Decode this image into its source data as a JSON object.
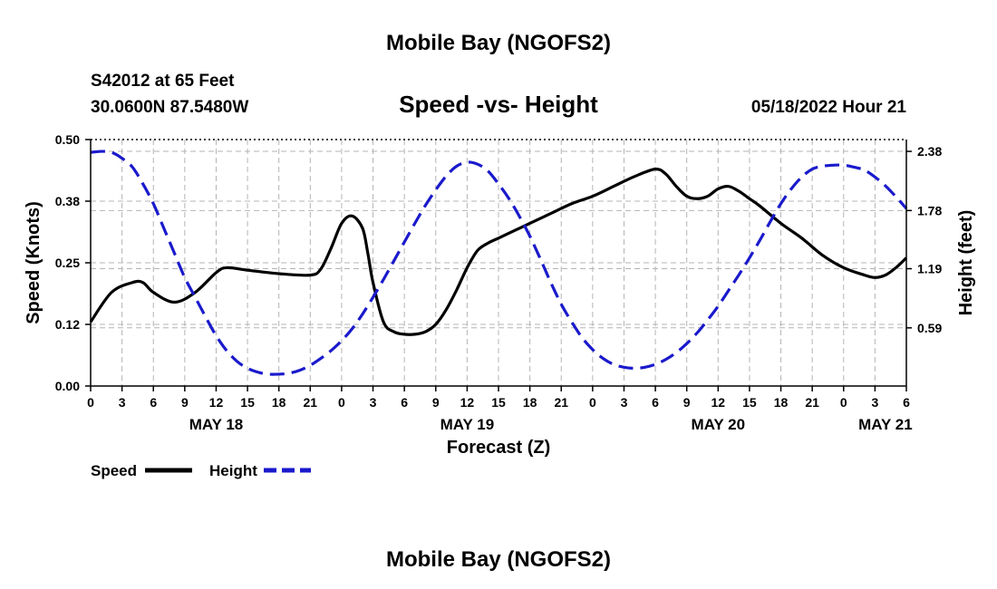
{
  "header": {
    "title": "Mobile Bay (NGOFS2)",
    "station": "S42012 at 65 Feet",
    "coords": "30.0600N  87.5480W",
    "chart_subtitle": "Speed -vs- Height",
    "timestamp": "05/18/2022 Hour 21"
  },
  "footer": {
    "title": "Mobile Bay (NGOFS2)"
  },
  "colors": {
    "speed": "#000000",
    "height": "#1a1acc",
    "grid": "#b4b4b4"
  },
  "chart_data": {
    "type": "line",
    "title": "Speed -vs- Height",
    "xlabel": "Forecast (Z)",
    "ylabel": "Speed (Knots)",
    "ylabel_right": "Height (feet)",
    "xlim": [
      0,
      78
    ],
    "ylim": [
      0,
      0.5
    ],
    "ylim_right": [
      0,
      2.5
    ],
    "grid": true,
    "legend_position": "bottom-left",
    "x_ticks": [
      0,
      3,
      6,
      9,
      12,
      15,
      18,
      21,
      24,
      27,
      30,
      33,
      36,
      39,
      42,
      45,
      48,
      51,
      54,
      57,
      60,
      63,
      66,
      69,
      72,
      75,
      78
    ],
    "x_tick_labels": [
      "0",
      "3",
      "6",
      "9",
      "12",
      "15",
      "18",
      "21",
      "0",
      "3",
      "6",
      "9",
      "12",
      "15",
      "18",
      "21",
      "0",
      "3",
      "6",
      "9",
      "12",
      "15",
      "18",
      "21",
      "0",
      "3",
      "6"
    ],
    "date_labels": [
      {
        "x": 12,
        "label": "MAY 18"
      },
      {
        "x": 36,
        "label": "MAY 19"
      },
      {
        "x": 60,
        "label": "MAY 20"
      },
      {
        "x": 76,
        "label": "MAY 21"
      }
    ],
    "y_ticks": [
      0,
      0.125,
      0.25,
      0.375,
      0.5
    ],
    "y_tick_labels": [
      "0.00",
      "0.12",
      "0.25",
      "0.38",
      "0.50"
    ],
    "y_right_ticks": [
      0.59,
      1.19,
      1.78,
      2.38
    ],
    "y_right_tick_labels": [
      "0.59",
      "1.19",
      "1.78",
      "2.38"
    ],
    "series": [
      {
        "name": "Speed",
        "axis": "left",
        "style": "solid",
        "x": [
          0,
          2,
          4,
          5,
          6,
          8,
          10,
          12,
          13,
          15,
          18,
          21,
          22,
          23,
          24,
          25,
          26,
          26.5,
          27,
          28,
          29,
          30,
          31,
          32,
          33,
          34,
          35,
          36,
          37,
          38,
          39,
          40,
          41,
          42,
          44,
          46,
          48,
          50,
          52,
          54,
          55,
          56,
          57,
          58,
          59,
          60,
          61,
          62,
          63,
          64,
          66,
          68,
          70,
          72,
          74,
          75,
          76,
          77,
          78
        ],
        "y": [
          0.13,
          0.19,
          0.21,
          0.21,
          0.19,
          0.17,
          0.19,
          0.23,
          0.24,
          0.235,
          0.228,
          0.225,
          0.237,
          0.28,
          0.33,
          0.345,
          0.32,
          0.27,
          0.21,
          0.13,
          0.11,
          0.105,
          0.105,
          0.11,
          0.125,
          0.155,
          0.195,
          0.24,
          0.275,
          0.29,
          0.3,
          0.31,
          0.32,
          0.33,
          0.35,
          0.37,
          0.385,
          0.405,
          0.425,
          0.44,
          0.43,
          0.405,
          0.385,
          0.38,
          0.385,
          0.4,
          0.405,
          0.395,
          0.38,
          0.365,
          0.33,
          0.3,
          0.265,
          0.24,
          0.225,
          0.22,
          0.225,
          0.24,
          0.26
        ]
      },
      {
        "name": "Height",
        "axis": "right",
        "style": "dashed",
        "x": [
          0,
          1,
          2,
          3,
          4,
          5,
          6,
          7,
          8,
          9,
          10,
          11,
          12,
          13,
          14,
          15,
          16,
          17,
          18,
          19,
          20,
          21,
          22,
          23,
          24,
          25,
          26,
          27,
          28,
          29,
          30,
          31,
          32,
          33,
          34,
          35,
          36,
          37,
          38,
          39,
          40,
          41,
          42,
          43,
          44,
          45,
          46,
          47,
          48,
          49,
          50,
          51,
          52,
          53,
          54,
          55,
          56,
          57,
          58,
          59,
          60,
          61,
          62,
          63,
          64,
          65,
          66,
          67,
          68,
          69,
          70,
          71,
          72,
          73,
          74,
          75,
          76,
          77,
          78
        ],
        "y": [
          2.37,
          2.38,
          2.37,
          2.31,
          2.22,
          2.05,
          1.85,
          1.6,
          1.35,
          1.1,
          0.9,
          0.7,
          0.51,
          0.36,
          0.25,
          0.18,
          0.14,
          0.12,
          0.12,
          0.13,
          0.16,
          0.21,
          0.28,
          0.36,
          0.46,
          0.58,
          0.73,
          0.9,
          1.08,
          1.27,
          1.46,
          1.65,
          1.83,
          1.99,
          2.13,
          2.23,
          2.27,
          2.25,
          2.18,
          2.05,
          1.9,
          1.72,
          1.52,
          1.29,
          1.05,
          0.83,
          0.65,
          0.49,
          0.37,
          0.28,
          0.22,
          0.19,
          0.18,
          0.19,
          0.22,
          0.27,
          0.34,
          0.43,
          0.54,
          0.67,
          0.81,
          0.97,
          1.13,
          1.3,
          1.48,
          1.67,
          1.85,
          2.0,
          2.12,
          2.2,
          2.23,
          2.24,
          2.24,
          2.22,
          2.19,
          2.12,
          2.03,
          1.92,
          1.8
        ]
      }
    ],
    "legend": [
      {
        "name": "Speed",
        "style": "solid"
      },
      {
        "name": "Height",
        "style": "dashed"
      }
    ]
  }
}
